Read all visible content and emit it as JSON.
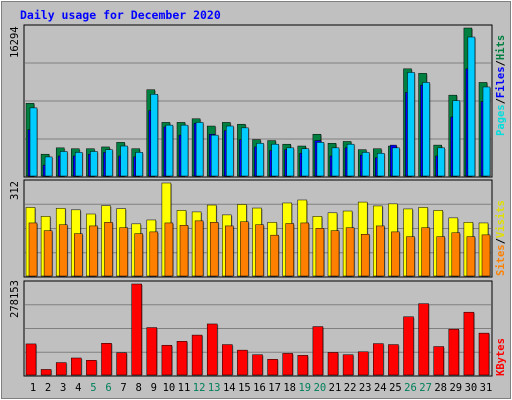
{
  "title": "Daily usage for December 2020",
  "colors": {
    "background": "#c0c0c0",
    "title": "#0000ff",
    "hits": "#00ccff",
    "hits_shadow": "#008040",
    "files": "#0000ff",
    "pages": "#00ffff",
    "visits": "#ffff00",
    "sites": "#ff8000",
    "kbytes": "#ff0000",
    "weekend_label": "#00805c",
    "weekday_label": "#000000"
  },
  "chart_data": [
    {
      "type": "bar",
      "name": "hits-files-pages",
      "axis_label": "16294",
      "side_labels": [
        "Pages",
        "/",
        "Files",
        "/",
        "Hits"
      ],
      "categories": [
        "1",
        "2",
        "3",
        "4",
        "5",
        "6",
        "7",
        "8",
        "9",
        "10",
        "11",
        "12",
        "13",
        "14",
        "15",
        "16",
        "17",
        "18",
        "19",
        "20",
        "21",
        "22",
        "23",
        "24",
        "25",
        "26",
        "27",
        "28",
        "29",
        "30",
        "31"
      ],
      "weekend_days": [
        "5",
        "6",
        "12",
        "13",
        "19",
        "20",
        "26",
        "27"
      ],
      "ylim": [
        0,
        16294
      ],
      "series": [
        {
          "name": "Hits",
          "values": [
            8000,
            2400,
            3100,
            3000,
            3000,
            3200,
            3700,
            3000,
            9500,
            5900,
            5900,
            6300,
            5500,
            5900,
            5700,
            4000,
            3900,
            3500,
            3300,
            4600,
            3600,
            3800,
            2900,
            3000,
            3300,
            11800,
            11300,
            3400,
            8900,
            16294,
            10300
          ]
        },
        {
          "name": "Files",
          "values": [
            5100,
            1200,
            2200,
            2200,
            2400,
            2600,
            2200,
            2100,
            7200,
            5400,
            4500,
            5800,
            4600,
            5000,
            4000,
            3200,
            2800,
            2900,
            2500,
            3900,
            2200,
            3100,
            2300,
            2000,
            3400,
            9200,
            10000,
            2200,
            6500,
            11800,
            8200
          ]
        },
        {
          "name": "Pages",
          "values": [
            7500,
            2100,
            2700,
            2600,
            2700,
            2900,
            3300,
            2600,
            9000,
            5600,
            5600,
            5900,
            4500,
            5500,
            5300,
            3600,
            3500,
            3100,
            3000,
            3700,
            3100,
            3500,
            2600,
            2500,
            3100,
            11400,
            10300,
            3100,
            8300,
            15300,
            9800
          ]
        }
      ]
    },
    {
      "type": "bar",
      "name": "visits-sites",
      "axis_label": "312",
      "side_labels": [
        "Sites",
        "/",
        "Visits"
      ],
      "categories": [
        "1",
        "2",
        "3",
        "4",
        "5",
        "6",
        "7",
        "8",
        "9",
        "10",
        "11",
        "12",
        "13",
        "14",
        "15",
        "16",
        "17",
        "18",
        "19",
        "20",
        "21",
        "22",
        "23",
        "24",
        "25",
        "26",
        "27",
        "28",
        "29",
        "30",
        "31"
      ],
      "ylim": [
        0,
        312
      ],
      "series": [
        {
          "name": "Visits",
          "values": [
            230,
            200,
            227,
            222,
            208,
            236,
            226,
            175,
            188,
            312,
            220,
            215,
            238,
            205,
            240,
            228,
            180,
            245,
            255,
            200,
            212,
            218,
            248,
            235,
            242,
            225,
            230,
            220,
            195,
            180,
            178
          ]
        },
        {
          "name": "Sites",
          "values": [
            178,
            152,
            172,
            142,
            168,
            180,
            162,
            142,
            148,
            178,
            170,
            185,
            180,
            168,
            182,
            172,
            137,
            176,
            178,
            160,
            152,
            162,
            140,
            168,
            148,
            132,
            162,
            132,
            145,
            132,
            138
          ]
        }
      ]
    },
    {
      "type": "bar",
      "name": "kbytes",
      "axis_label": "278153",
      "side_labels": [
        "KBytes"
      ],
      "categories": [
        "1",
        "2",
        "3",
        "4",
        "5",
        "6",
        "7",
        "8",
        "9",
        "10",
        "11",
        "12",
        "13",
        "14",
        "15",
        "16",
        "17",
        "18",
        "19",
        "20",
        "21",
        "22",
        "23",
        "24",
        "25",
        "26",
        "27",
        "28",
        "29",
        "30",
        "31"
      ],
      "ylim": [
        0,
        278153
      ],
      "series": [
        {
          "name": "KBytes",
          "values": [
            95000,
            17000,
            38000,
            52000,
            45000,
            97000,
            68000,
            278153,
            145000,
            91000,
            103000,
            122000,
            156000,
            93000,
            76000,
            62000,
            48000,
            66000,
            60000,
            148000,
            69000,
            62000,
            71000,
            96000,
            93000,
            178000,
            218000,
            87000,
            140000,
            192000,
            128000
          ]
        }
      ]
    }
  ]
}
